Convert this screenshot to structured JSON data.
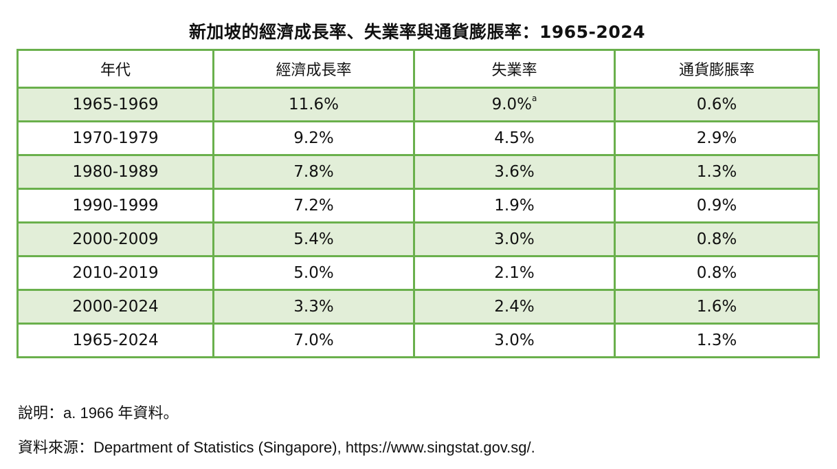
{
  "title": "新加坡的經濟成長率、失業率與通貨膨脹率：1965-2024",
  "table": {
    "headers": [
      "年代",
      "經濟成長率",
      "失業率",
      "通貨膨脹率"
    ],
    "rows": [
      {
        "period": "1965-1969",
        "gdp_growth": "11.6%",
        "unemployment": "9.0%",
        "unemployment_note": "a",
        "inflation": "0.6%"
      },
      {
        "period": "1970-1979",
        "gdp_growth": "9.2%",
        "unemployment": "4.5%",
        "inflation": "2.9%"
      },
      {
        "period": "1980-1989",
        "gdp_growth": "7.8%",
        "unemployment": "3.6%",
        "inflation": "1.3%"
      },
      {
        "period": "1990-1999",
        "gdp_growth": "7.2%",
        "unemployment": "1.9%",
        "inflation": "0.9%"
      },
      {
        "period": "2000-2009",
        "gdp_growth": "5.4%",
        "unemployment": "3.0%",
        "inflation": "0.8%"
      },
      {
        "period": "2010-2019",
        "gdp_growth": "5.0%",
        "unemployment": "2.1%",
        "inflation": "0.8%"
      },
      {
        "period": "2000-2024",
        "gdp_growth": "3.3%",
        "unemployment": "2.4%",
        "inflation": "1.6%"
      },
      {
        "period": "1965-2024",
        "gdp_growth": "7.0%",
        "unemployment": "3.0%",
        "inflation": "1.3%"
      }
    ]
  },
  "notes": {
    "explanation": "說明：a. 1966 年資料。",
    "source": "資料來源：Department of Statistics (Singapore), https://www.singstat.gov.sg/."
  },
  "colors": {
    "border": "#6ab04c",
    "shaded_row": "#e2eed8"
  }
}
